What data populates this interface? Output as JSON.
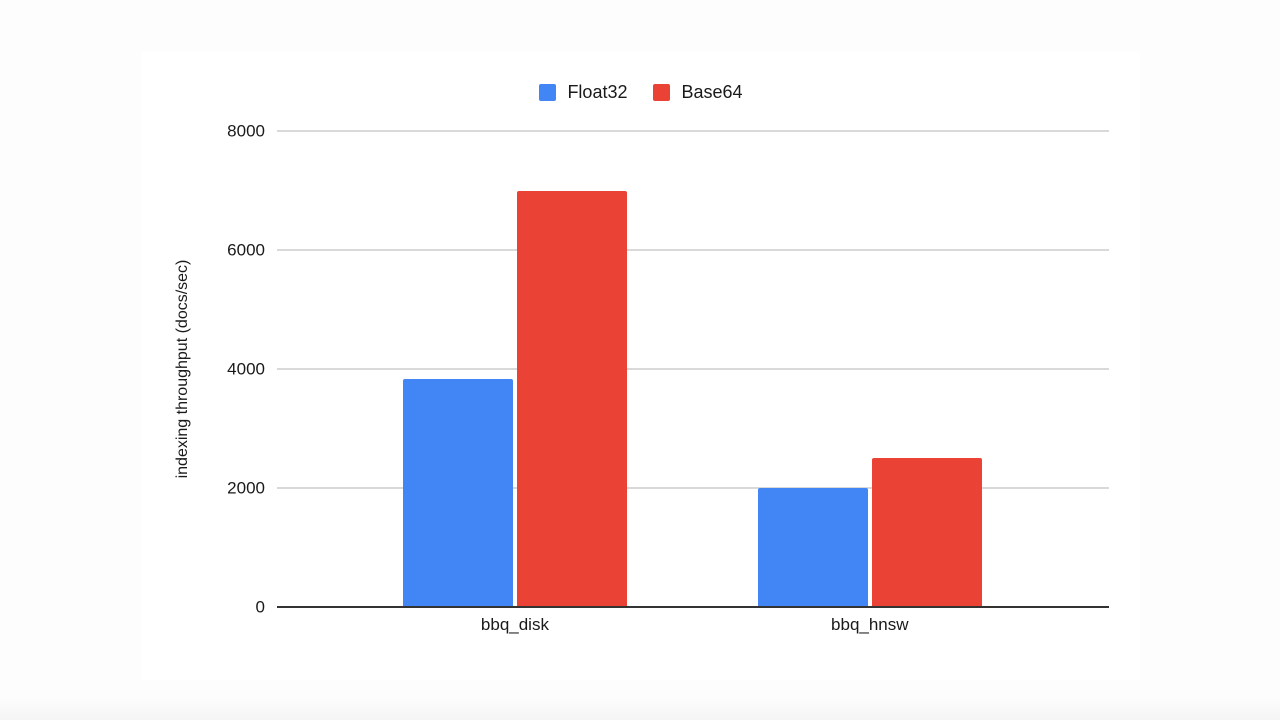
{
  "page": {
    "background_color": "#fdfdfd",
    "card_background_color": "#ffffff"
  },
  "chart_data": {
    "type": "bar",
    "title": "",
    "categories": [
      "bbq_disk",
      "bbq_hnsw"
    ],
    "series": [
      {
        "name": "Float32",
        "color": "#4285f4",
        "values": [
          3840,
          2000
        ]
      },
      {
        "name": "Base64",
        "color": "#ea4335",
        "values": [
          7000,
          2500
        ]
      }
    ],
    "xlabel": "",
    "ylabel": "indexing throughput (docs/sec)",
    "ylim": [
      0,
      8000
    ],
    "yticks": [
      0,
      2000,
      4000,
      6000,
      8000
    ],
    "grid": "horizontal-only",
    "legend_position": "top-center",
    "gridline_color": "#d9d9d9",
    "axis_color": "#333333",
    "text_color": "#1a1a1a"
  }
}
